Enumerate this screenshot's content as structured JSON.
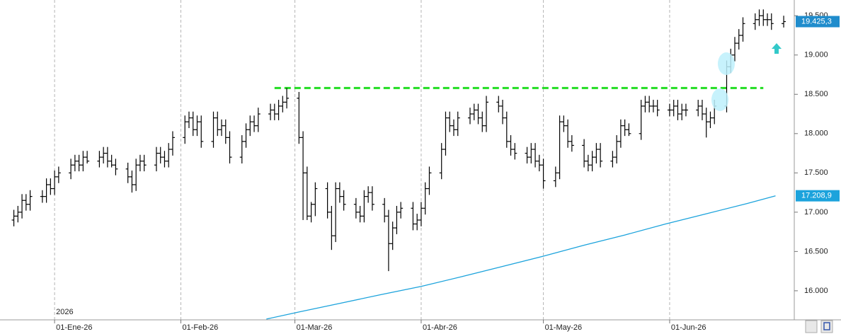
{
  "chart_data": {
    "type": "ohlc",
    "xlim": [
      -13.4,
      181.6
    ],
    "ylim": [
      15630,
      19700
    ],
    "xticks": [
      {
        "value": 0,
        "label": "01-Ene-26"
      },
      {
        "value": 31,
        "label": "01-Feb-26"
      },
      {
        "value": 59,
        "label": "01-Mar-26"
      },
      {
        "value": 90,
        "label": "01-Abr-26"
      },
      {
        "value": 120,
        "label": "01-May-26"
      },
      {
        "value": 151,
        "label": "01-Jun-26"
      }
    ],
    "yticks": [
      {
        "value": 16000,
        "label": "16.000"
      },
      {
        "value": 16500,
        "label": "16.500"
      },
      {
        "value": 17000,
        "label": "17.000"
      },
      {
        "value": 17500,
        "label": "17.500"
      },
      {
        "value": 18000,
        "label": "18.000"
      },
      {
        "value": 18500,
        "label": "18.500"
      },
      {
        "value": 19000,
        "label": "19.000"
      },
      {
        "value": 19500,
        "label": "19.500"
      }
    ],
    "year_label": "2026",
    "color": "#000000",
    "x": [
      -10,
      -9,
      -8,
      -7,
      -6,
      -3,
      -2,
      -1,
      0,
      1,
      4,
      5,
      6,
      7,
      8,
      11,
      12,
      13,
      14,
      15,
      18,
      19,
      20,
      21,
      22,
      25,
      26,
      27,
      28,
      29,
      32,
      33,
      34,
      35,
      36,
      39,
      40,
      41,
      42,
      43,
      46,
      47,
      48,
      49,
      50,
      53,
      54,
      55,
      56,
      57,
      60,
      61,
      62,
      63,
      64,
      67,
      68,
      69,
      70,
      71,
      74,
      75,
      76,
      77,
      78,
      81,
      82,
      83,
      84,
      85,
      88,
      89,
      90,
      91,
      92,
      95,
      96,
      97,
      98,
      99,
      102,
      103,
      104,
      105,
      106,
      109,
      110,
      111,
      112,
      113,
      116,
      117,
      118,
      119,
      120,
      123,
      124,
      125,
      126,
      127,
      130,
      131,
      132,
      133,
      134,
      137,
      138,
      139,
      140,
      141,
      144,
      145,
      146,
      147,
      148,
      151,
      152,
      153,
      154,
      155,
      158,
      159,
      160,
      161,
      162,
      165,
      166,
      167,
      168,
      169,
      172,
      173,
      174,
      175,
      176,
      179
    ],
    "open": [
      16900,
      16950,
      17000,
      17150,
      17100,
      17200,
      17200,
      17350,
      17300,
      17450,
      17500,
      17600,
      17650,
      17600,
      17700,
      17650,
      17700,
      17750,
      17650,
      17600,
      17550,
      17450,
      17350,
      17600,
      17650,
      17600,
      17750,
      17700,
      17650,
      17800,
      17950,
      18150,
      18200,
      18050,
      18150,
      17900,
      18200,
      18050,
      18100,
      17950,
      17700,
      17900,
      18050,
      18150,
      18100,
      18250,
      18300,
      18250,
      18350,
      18400,
      18450,
      17950,
      17500,
      16950,
      17100,
      17300,
      17000,
      16700,
      17300,
      17200,
      17100,
      17000,
      16950,
      17200,
      17250,
      17100,
      16950,
      16600,
      16800,
      17000,
      17050,
      16850,
      16900,
      17050,
      17300,
      17500,
      17800,
      18200,
      18100,
      18050,
      18200,
      18250,
      18300,
      18200,
      18100,
      18400,
      18350,
      18200,
      17900,
      17800,
      17750,
      17700,
      17800,
      17650,
      17600,
      17400,
      17500,
      18150,
      18100,
      17900,
      17850,
      17650,
      17600,
      17700,
      17800,
      17650,
      17700,
      17900,
      18100,
      18050,
      18000,
      18350,
      18400,
      18350,
      18350,
      18300,
      18300,
      18350,
      18250,
      18300,
      18300,
      18350,
      18250,
      18150,
      18200,
      18350,
      18850,
      19000,
      19150,
      19250,
      19400,
      19450,
      19500,
      19450,
      19450,
      19400
    ],
    "high": [
      17030,
      17080,
      17230,
      17230,
      17280,
      17280,
      17430,
      17430,
      17530,
      17580,
      17680,
      17730,
      17730,
      17780,
      17780,
      17780,
      17830,
      17830,
      17730,
      17680,
      17630,
      17530,
      17680,
      17730,
      17730,
      17830,
      17830,
      17780,
      17880,
      18030,
      18230,
      18280,
      18280,
      18230,
      18230,
      18280,
      18280,
      18180,
      18180,
      18030,
      17980,
      18130,
      18230,
      18230,
      18330,
      18380,
      18380,
      18430,
      18480,
      18580,
      18530,
      18030,
      17580,
      17130,
      17380,
      17380,
      17080,
      17380,
      17380,
      17280,
      17180,
      17080,
      17280,
      17330,
      17330,
      17180,
      17030,
      16880,
      17080,
      17130,
      17130,
      16980,
      17130,
      17380,
      17580,
      17880,
      18280,
      18280,
      18180,
      18280,
      18330,
      18380,
      18380,
      18280,
      18480,
      18480,
      18430,
      18280,
      17980,
      17880,
      17830,
      17880,
      17880,
      17730,
      17680,
      17580,
      18230,
      18230,
      18180,
      17980,
      17930,
      17730,
      17780,
      17880,
      17880,
      17780,
      17980,
      18180,
      18180,
      18130,
      18430,
      18480,
      18480,
      18430,
      18430,
      18380,
      18430,
      18430,
      18380,
      18380,
      18430,
      18430,
      18330,
      18280,
      18430,
      18930,
      19080,
      19230,
      19330,
      19480,
      19530,
      19580,
      19580,
      19530,
      19530,
      19500
    ],
    "low": [
      16820,
      16870,
      16920,
      17020,
      17020,
      17120,
      17120,
      17220,
      17220,
      17370,
      17420,
      17520,
      17520,
      17520,
      17620,
      17570,
      17620,
      17570,
      17570,
      17470,
      17370,
      17250,
      17270,
      17520,
      17520,
      17520,
      17620,
      17570,
      17570,
      17720,
      17870,
      18070,
      17970,
      17970,
      17820,
      17820,
      17970,
      17970,
      17870,
      17620,
      17620,
      17820,
      17970,
      18020,
      18020,
      18170,
      18170,
      18170,
      18270,
      18320,
      17870,
      16900,
      16900,
      16870,
      16950,
      16920,
      16520,
      16620,
      17120,
      17020,
      16920,
      16870,
      16870,
      17120,
      17020,
      16870,
      16250,
      16520,
      16720,
      16920,
      16770,
      16770,
      16820,
      16970,
      17220,
      17420,
      17720,
      18020,
      17970,
      17970,
      18120,
      18170,
      18120,
      18020,
      18020,
      18270,
      18120,
      17820,
      17720,
      17670,
      17620,
      17620,
      17570,
      17520,
      17300,
      17320,
      17420,
      18020,
      17820,
      17770,
      17570,
      17520,
      17520,
      17620,
      17570,
      17570,
      17620,
      17820,
      17970,
      17970,
      17920,
      18270,
      18270,
      18270,
      18220,
      18220,
      18220,
      18170,
      18170,
      18220,
      18220,
      18170,
      17950,
      18070,
      18120,
      18270,
      18770,
      18920,
      19070,
      19170,
      19320,
      19370,
      19370,
      19370,
      19320,
      19350
    ],
    "close": [
      16950,
      17000,
      17150,
      17100,
      17200,
      17200,
      17350,
      17300,
      17450,
      17500,
      17600,
      17650,
      17600,
      17700,
      17650,
      17700,
      17750,
      17650,
      17600,
      17550,
      17450,
      17350,
      17600,
      17650,
      17600,
      17750,
      17700,
      17650,
      17800,
      17950,
      18150,
      18200,
      18050,
      18150,
      17900,
      18200,
      18050,
      18100,
      17950,
      17700,
      17900,
      18050,
      18150,
      18100,
      18250,
      18300,
      18250,
      18350,
      18400,
      18450,
      17950,
      17500,
      16950,
      17100,
      17300,
      17000,
      16700,
      17300,
      17200,
      17100,
      17000,
      16950,
      17200,
      17250,
      17100,
      16950,
      16600,
      16800,
      17000,
      17050,
      16850,
      16900,
      17050,
      17300,
      17500,
      17800,
      18200,
      18100,
      18050,
      18200,
      18250,
      18300,
      18200,
      18100,
      18400,
      18350,
      18200,
      17900,
      17800,
      17750,
      17700,
      17800,
      17650,
      17600,
      17400,
      17500,
      18150,
      18100,
      17900,
      17850,
      17650,
      17600,
      17700,
      17800,
      17650,
      17700,
      17900,
      18100,
      18050,
      18000,
      18350,
      18400,
      18350,
      18350,
      18300,
      18300,
      18350,
      18250,
      18300,
      18300,
      18350,
      18250,
      18150,
      18200,
      18350,
      18850,
      19000,
      19150,
      19250,
      19400,
      19450,
      19500,
      19450,
      19450,
      19400,
      19425.3
    ],
    "last_label": "19.425,3",
    "moving_average": {
      "color": "#1ca3dc",
      "x": [
        52,
        60,
        70,
        80,
        90,
        100,
        110,
        120,
        130,
        140,
        150,
        160,
        170,
        177
      ],
      "values": [
        15640,
        15730,
        15840,
        15950,
        16055,
        16180,
        16310,
        16440,
        16580,
        16710,
        16850,
        16980,
        17110,
        17208.9
      ],
      "last_label": "17.208,9"
    },
    "level": {
      "value": 18580,
      "from": 54,
      "to": 174,
      "color": "#22dd22"
    }
  }
}
